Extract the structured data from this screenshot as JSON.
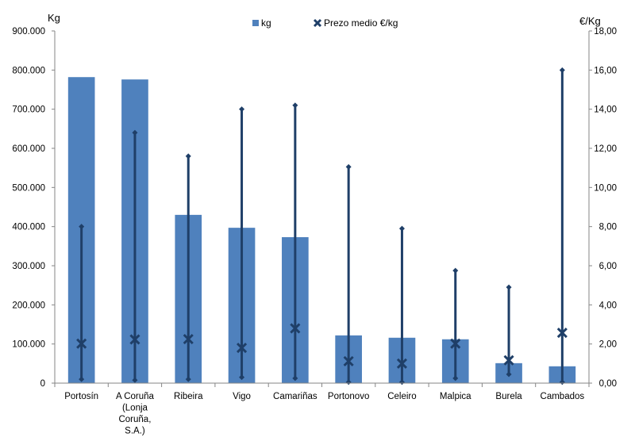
{
  "chart_data": {
    "type": "bar",
    "categories": [
      [
        "Portosín"
      ],
      [
        "A Coruña",
        "(Lonja",
        "Coruña,",
        "S.A.)"
      ],
      [
        "Ribeira"
      ],
      [
        "Vigo"
      ],
      [
        "Camariñas"
      ],
      [
        "Portonovo"
      ],
      [
        "Celeiro"
      ],
      [
        "Malpica"
      ],
      [
        "Burela"
      ],
      [
        "Cambados"
      ]
    ],
    "y_left_label": "Kg",
    "y_right_label": "€/Kg",
    "y_left_lim": [
      0,
      900000
    ],
    "y_right_lim": [
      0,
      18
    ],
    "y_left_ticks": [
      "0",
      "100.000",
      "200.000",
      "300.000",
      "400.000",
      "500.000",
      "600.000",
      "700.000",
      "800.000",
      "900.000"
    ],
    "y_right_ticks": [
      "0,00",
      "2,00",
      "4,00",
      "6,00",
      "8,00",
      "10,00",
      "12,00",
      "14,00",
      "16,00",
      "18,00"
    ],
    "legend_position": "top-center",
    "grid": false,
    "bar_color": "#4f81bd",
    "marker_color": "#1f3f68",
    "series": [
      {
        "name": "kg",
        "type": "bar",
        "axis": "left",
        "values": [
          782000,
          776000,
          430000,
          397000,
          373000,
          122000,
          116000,
          112000,
          51000,
          43000
        ]
      },
      {
        "name": "Prezo medio €/kg",
        "type": "range-with-mean",
        "axis": "right",
        "min": [
          0.2,
          0.15,
          0.2,
          0.3,
          0.25,
          0.05,
          0.05,
          0.25,
          0.45,
          0.05
        ],
        "max": [
          8.0,
          12.8,
          11.6,
          14.0,
          14.2,
          11.05,
          7.9,
          5.75,
          4.9,
          16.0
        ],
        "mean": [
          2.02,
          2.23,
          2.25,
          1.8,
          2.8,
          1.12,
          1.0,
          2.02,
          1.17,
          2.57
        ]
      }
    ]
  }
}
